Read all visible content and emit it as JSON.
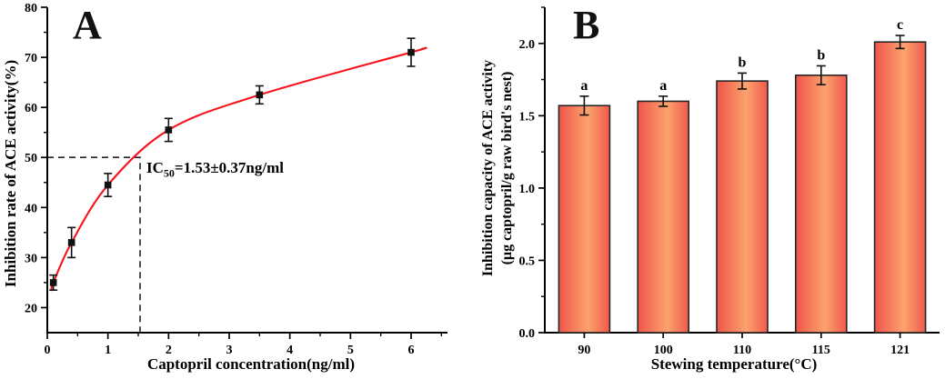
{
  "figure": {
    "background": "#ffffff",
    "axis_color": "#000000",
    "text_color": "#000000"
  },
  "panel_a": {
    "letter": "A",
    "xlabel": "Captopril concentration(ng/ml)",
    "ylabel": "Inhibition rate of ACE activity(%)",
    "ic50_prefix": "IC",
    "ic50_sub": "50",
    "ic50_rest": "=1.53±0.37ng/ml"
  },
  "panel_b": {
    "letter": "B",
    "xlabel": "Stewing temperature(°C)",
    "ylabel_line1": "Inhibition capacity of ACE activity",
    "ylabel_line2": "(μg captopril/g raw bird's nest)"
  },
  "chart_data": [
    {
      "panel": "A",
      "type": "scatter",
      "title": "",
      "xlabel": "Captopril concentration(ng/ml)",
      "ylabel": "Inhibition rate of ACE activity(%)",
      "x": [
        0.1,
        0.4,
        1.0,
        2.0,
        3.5,
        6.0
      ],
      "y": [
        25.0,
        33.0,
        44.5,
        55.5,
        62.5,
        71.0
      ],
      "yerr": [
        1.5,
        3.0,
        2.3,
        2.3,
        1.8,
        2.8
      ],
      "xlim": [
        0,
        6.6
      ],
      "ylim": [
        15,
        80
      ],
      "xticks": [
        "0",
        "1",
        "2",
        "3",
        "4",
        "5",
        "6"
      ],
      "yticks": [
        "20",
        "30",
        "40",
        "50",
        "60",
        "70",
        "80"
      ],
      "x_minor_step": 0.5,
      "y_minor_step": 5,
      "grid": false,
      "marker": "square",
      "marker_color": "#111111",
      "fit_curve": {
        "color": "#f8121c",
        "start": [
          0.07,
          23.5
        ],
        "end": [
          6.18,
          71.7
        ]
      },
      "guide_lines": {
        "y": 50,
        "x": 1.53,
        "style": "dashed"
      },
      "annotation": "IC50=1.53±0.37ng/ml"
    },
    {
      "panel": "B",
      "type": "bar",
      "title": "",
      "xlabel": "Stewing temperature(°C)",
      "ylabel": "Inhibition capacity of ACE activity (μg captopril/g raw bird's nest)",
      "categories": [
        "90",
        "100",
        "110",
        "115",
        "121"
      ],
      "values": [
        1.57,
        1.6,
        1.74,
        1.78,
        2.01
      ],
      "errors": [
        0.065,
        0.035,
        0.055,
        0.065,
        0.045
      ],
      "sig_letters": [
        "a",
        "a",
        "b",
        "b",
        "c"
      ],
      "ylim": [
        0,
        2.25
      ],
      "yticks": [
        "0.0",
        "0.5",
        "1.0",
        "1.5",
        "2.0"
      ],
      "y_minor_step": 0.25,
      "grid": false,
      "bar_gradient": [
        "#ef564b",
        "#fca26d",
        "#ef5a4d"
      ],
      "bar_border": "#262626"
    }
  ]
}
